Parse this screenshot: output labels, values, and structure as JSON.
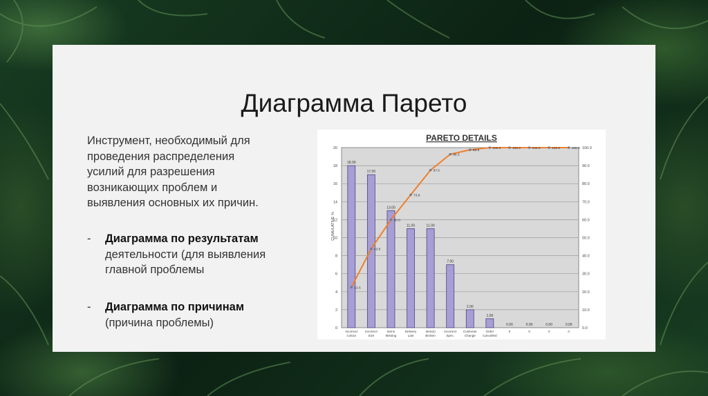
{
  "slide": {
    "title": "Диаграмма Парето",
    "intro": "Инструмент, необходимый для проведения распределения усилий для разрешения возникающих проблем и выявления основных их причин.",
    "bullets": [
      {
        "dash": "-",
        "bold": "Диаграмма по результатам",
        "rest": "деятельности (для выявления главной проблемы"
      },
      {
        "dash": "-",
        "bold": "Диаграмма по причинам",
        "rest": "(причина проблемы)"
      }
    ]
  },
  "chart_data": {
    "type": "bar",
    "title": "PARETO DETAILS",
    "ylabel": "CUMULATIVE %",
    "categories": [
      "Incorrect Colour",
      "Incorrect Size",
      "Items Missing",
      "Delivery Late",
      "Item(s) Broken",
      "Incorrect Spec.",
      "Customer Change",
      "Order Cancelled",
      "0",
      "0",
      "0",
      "0"
    ],
    "series": [
      {
        "values": [
          18,
          17,
          13,
          11,
          11,
          7,
          2,
          1,
          0,
          0,
          0,
          0
        ]
      },
      {
        "values": [
          22.5,
          43.8,
          60.0,
          73.8,
          87.5,
          96.3,
          98.8,
          100.0,
          100.0,
          100.0,
          100.0,
          100.0
        ]
      }
    ],
    "bar_labels": [
      "18.00",
      "17.00",
      "13.00",
      "11.00",
      "11.00",
      "7.00",
      "2.00",
      "1.00",
      "0.00",
      "0.00",
      "0.00",
      "0.00"
    ],
    "line_labels": [
      "22.5",
      "43.8",
      "60.0",
      "73.8",
      "87.5",
      "96.3",
      "98.8",
      "100.0",
      "100.0",
      "100.0",
      "100.0",
      "100.0"
    ],
    "left_ticks": [
      "0",
      "2",
      "4",
      "6",
      "8",
      "10",
      "12",
      "14",
      "16",
      "18",
      "20"
    ],
    "right_ticks": [
      "0.0",
      "10.0",
      "20.0",
      "30.0",
      "40.0",
      "50.0",
      "60.0",
      "70.0",
      "80.0",
      "90.0",
      "100.0"
    ],
    "ylim": [
      0,
      20
    ],
    "y2lim": [
      0,
      100
    ],
    "grid": true,
    "colors": {
      "bar": "#a69ed4",
      "bar_edge": "#4b4580",
      "line": "#f07f2a",
      "marker": "#7a7a8a",
      "plot_bg": "#d9d9d9",
      "grid": "#9a9a9a"
    }
  }
}
